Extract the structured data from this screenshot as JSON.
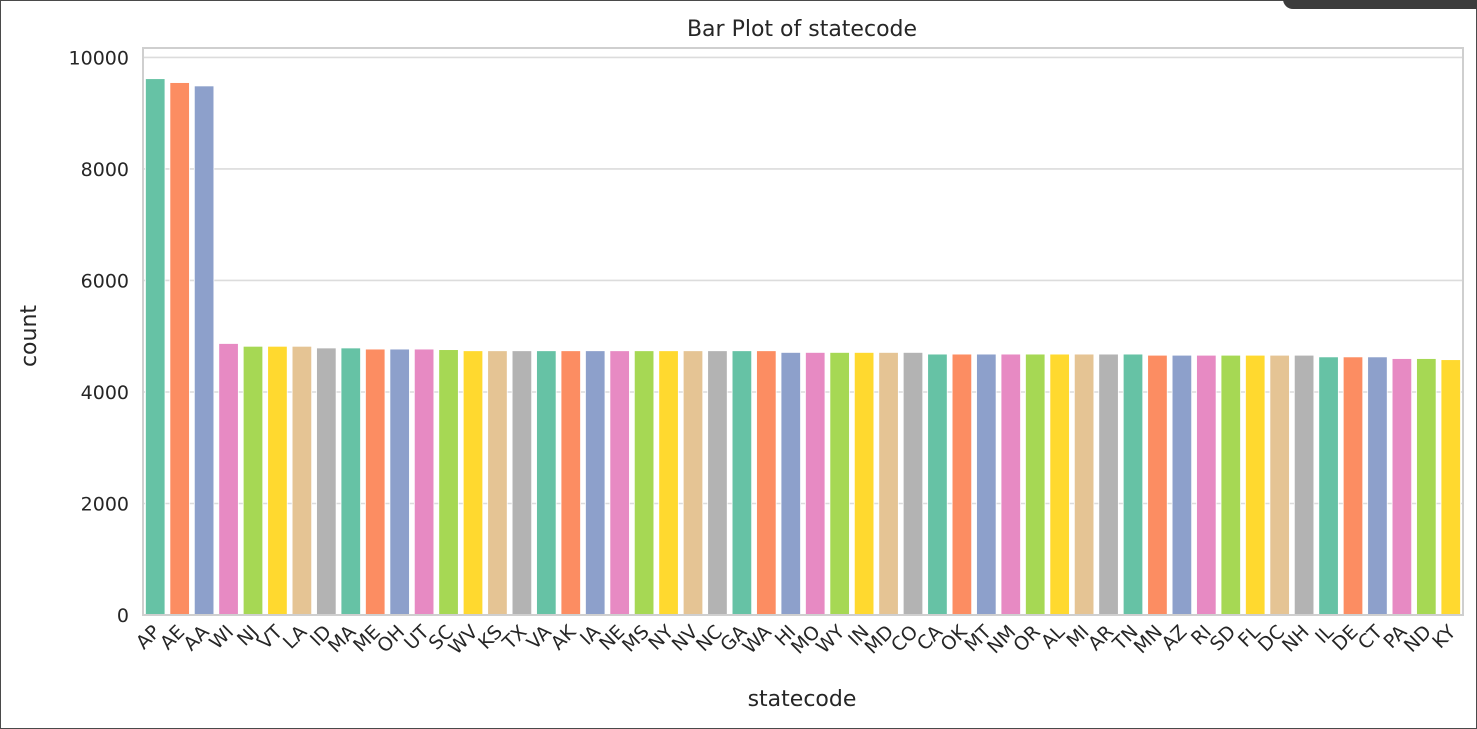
{
  "chart_data": {
    "type": "bar",
    "title": "Bar Plot of statecode",
    "xlabel": "statecode",
    "ylabel": "count",
    "ylim": [
      0,
      10000
    ],
    "yticks": [
      0,
      2000,
      4000,
      6000,
      8000,
      10000
    ],
    "grid": true,
    "categories": [
      "AP",
      "AE",
      "AA",
      "WI",
      "NJ",
      "VT",
      "LA",
      "ID",
      "MA",
      "ME",
      "OH",
      "UT",
      "SC",
      "WV",
      "KS",
      "TX",
      "VA",
      "AK",
      "IA",
      "NE",
      "MS",
      "NY",
      "NV",
      "NC",
      "GA",
      "WA",
      "HI",
      "MO",
      "WY",
      "IN",
      "MD",
      "CO",
      "CA",
      "OK",
      "MT",
      "NM",
      "OR",
      "AL",
      "MI",
      "AR",
      "TN",
      "MN",
      "AZ",
      "RI",
      "SD",
      "FL",
      "DC",
      "NH",
      "IL",
      "DE",
      "CT",
      "PA",
      "ND",
      "KY"
    ],
    "values": [
      9620,
      9550,
      9490,
      4870,
      4820,
      4820,
      4820,
      4790,
      4790,
      4770,
      4770,
      4770,
      4760,
      4740,
      4740,
      4740,
      4740,
      4740,
      4740,
      4740,
      4740,
      4740,
      4740,
      4740,
      4740,
      4740,
      4710,
      4710,
      4710,
      4710,
      4710,
      4710,
      4680,
      4680,
      4680,
      4680,
      4680,
      4680,
      4680,
      4680,
      4680,
      4660,
      4660,
      4660,
      4660,
      4660,
      4660,
      4660,
      4630,
      4630,
      4630,
      4600,
      4600,
      4580
    ],
    "palette": [
      "#66c2a5",
      "#fc8d62",
      "#8da0cb",
      "#e78ac3",
      "#a6d854",
      "#ffd92f",
      "#e5c494",
      "#b3b3b3"
    ]
  }
}
